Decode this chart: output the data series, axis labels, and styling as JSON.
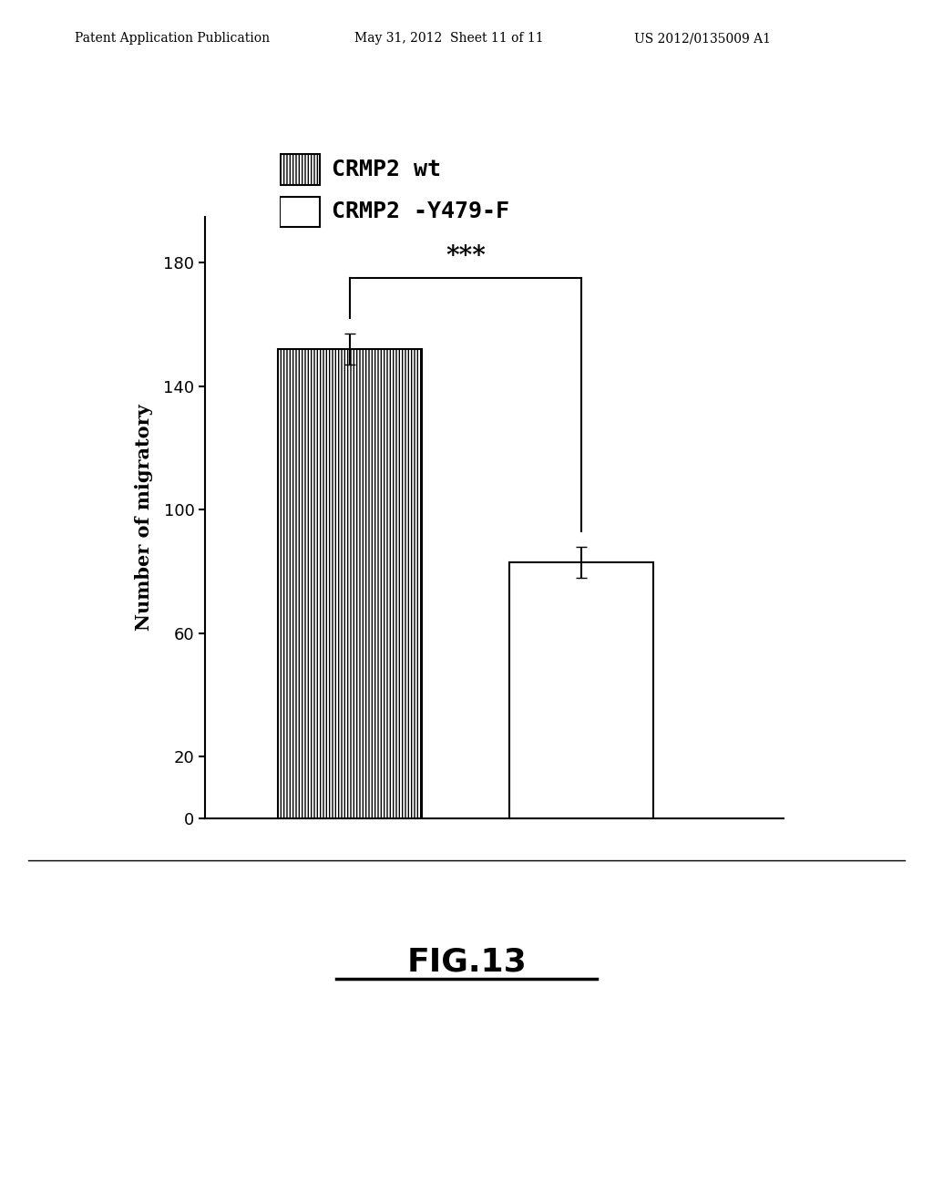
{
  "header_left": "Patent Application Publication",
  "header_center": "May 31, 2012  Sheet 11 of 11",
  "header_right": "US 2012/0135009 A1",
  "legend_items": [
    {
      "label": "CRMP2 wt",
      "hatch": "|||"
    },
    {
      "label": "CRMP2 -Y479-F",
      "hatch": ""
    }
  ],
  "bars": [
    {
      "label": "CRMP2 wt",
      "value": 152,
      "error": 5,
      "hatch": "|||||||",
      "facecolor": "white",
      "edgecolor": "black"
    },
    {
      "label": "CRMP2 -Y479-F",
      "value": 83,
      "error": 5,
      "hatch": "",
      "facecolor": "white",
      "edgecolor": "black"
    }
  ],
  "ylabel": "Number of migratory",
  "yticks": [
    0,
    20,
    60,
    100,
    140,
    180
  ],
  "ylim": [
    0,
    195
  ],
  "significance": "***",
  "fig_label": "FIG.13",
  "background_color": "#ffffff"
}
